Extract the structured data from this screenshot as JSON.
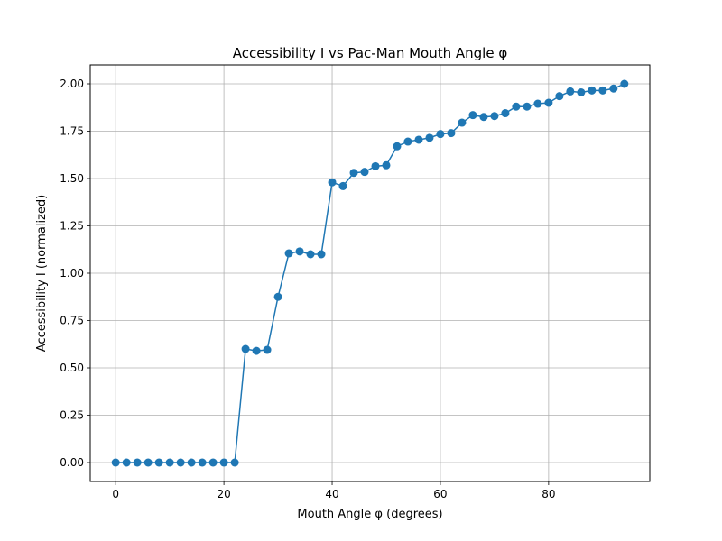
{
  "chart_data": {
    "type": "line",
    "title": "Accessibility I vs Pac-Man Mouth Angle φ",
    "xlabel": "Mouth Angle φ (degrees)",
    "ylabel": "Accessibility I (normalized)",
    "xlim": [
      -4.7,
      98.7
    ],
    "ylim": [
      -0.1,
      2.1
    ],
    "x_ticks": [
      0,
      20,
      40,
      60,
      80
    ],
    "y_ticks": [
      0.0,
      0.25,
      0.5,
      0.75,
      1.0,
      1.25,
      1.5,
      1.75,
      2.0
    ],
    "x_tick_labels": [
      "0",
      "20",
      "40",
      "60",
      "80"
    ],
    "y_tick_labels": [
      "0.00",
      "0.25",
      "0.50",
      "0.75",
      "1.00",
      "1.25",
      "1.50",
      "1.75",
      "2.00"
    ],
    "grid": true,
    "legend": "none",
    "series": [
      {
        "color": "#1f77b4",
        "marker": "circle",
        "x": [
          0,
          2,
          4,
          6,
          8,
          10,
          12,
          14,
          16,
          18,
          20,
          22,
          24,
          26,
          28,
          30,
          32,
          34,
          36,
          38,
          40,
          42,
          44,
          46,
          48,
          50,
          52,
          54,
          56,
          58,
          60,
          62,
          64,
          66,
          68,
          70,
          72,
          74,
          76,
          78,
          80,
          82,
          84,
          86,
          88,
          90,
          92,
          94
        ],
        "y": [
          0,
          0,
          0,
          0,
          0,
          0,
          0,
          0,
          0,
          0,
          0,
          0,
          0.6,
          0.59,
          0.595,
          0.875,
          1.105,
          1.115,
          1.1,
          1.1,
          1.48,
          1.46,
          1.53,
          1.535,
          1.565,
          1.57,
          1.67,
          1.695,
          1.705,
          1.715,
          1.735,
          1.74,
          1.795,
          1.835,
          1.825,
          1.83,
          1.845,
          1.88,
          1.88,
          1.895,
          1.9,
          1.935,
          1.96,
          1.955,
          1.965,
          1.965,
          1.975,
          2.0
        ]
      }
    ]
  }
}
